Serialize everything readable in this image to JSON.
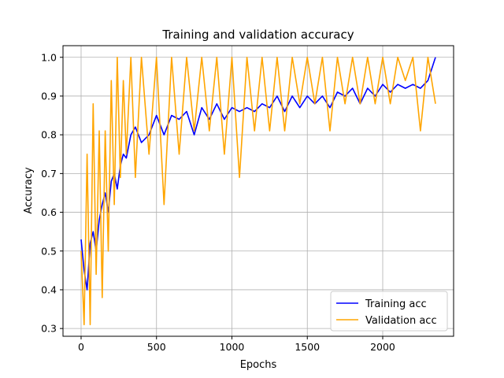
{
  "chart_data": {
    "type": "line",
    "title": "Training and validation accuracy",
    "xlabel": "Epochs",
    "ylabel": "Accuracy",
    "xlim": [
      -120,
      2470
    ],
    "ylim": [
      0.28,
      1.03
    ],
    "xticks": [
      0,
      500,
      1000,
      1500,
      2000
    ],
    "yticks": [
      0.3,
      0.4,
      0.5,
      0.6,
      0.7,
      0.8,
      0.9,
      1.0
    ],
    "grid": true,
    "legend_position": "lower-right",
    "series": [
      {
        "name": "Training acc",
        "color": "#0000ff",
        "x": [
          0,
          20,
          40,
          60,
          80,
          100,
          120,
          140,
          160,
          180,
          200,
          220,
          240,
          260,
          280,
          300,
          330,
          360,
          400,
          450,
          500,
          550,
          600,
          650,
          700,
          750,
          800,
          850,
          900,
          950,
          1000,
          1050,
          1100,
          1150,
          1200,
          1250,
          1300,
          1350,
          1400,
          1450,
          1500,
          1550,
          1600,
          1650,
          1700,
          1750,
          1800,
          1850,
          1900,
          1950,
          2000,
          2050,
          2100,
          2150,
          2200,
          2250,
          2300,
          2350
        ],
        "values": [
          0.53,
          0.45,
          0.4,
          0.52,
          0.55,
          0.5,
          0.58,
          0.62,
          0.65,
          0.6,
          0.68,
          0.7,
          0.66,
          0.72,
          0.75,
          0.74,
          0.8,
          0.82,
          0.78,
          0.8,
          0.85,
          0.8,
          0.85,
          0.84,
          0.86,
          0.8,
          0.87,
          0.84,
          0.88,
          0.84,
          0.87,
          0.86,
          0.87,
          0.86,
          0.88,
          0.87,
          0.9,
          0.86,
          0.9,
          0.87,
          0.9,
          0.88,
          0.9,
          0.87,
          0.91,
          0.9,
          0.92,
          0.88,
          0.92,
          0.9,
          0.93,
          0.91,
          0.93,
          0.92,
          0.93,
          0.92,
          0.94,
          1.0
        ]
      },
      {
        "name": "Validation acc",
        "color": "#ffa500",
        "x": [
          0,
          20,
          40,
          60,
          80,
          100,
          120,
          140,
          160,
          180,
          200,
          220,
          240,
          260,
          280,
          300,
          330,
          360,
          400,
          450,
          500,
          550,
          600,
          650,
          700,
          750,
          800,
          850,
          900,
          950,
          1000,
          1050,
          1100,
          1150,
          1200,
          1250,
          1300,
          1350,
          1400,
          1450,
          1500,
          1550,
          1600,
          1650,
          1700,
          1750,
          1800,
          1850,
          1900,
          1950,
          2000,
          2050,
          2100,
          2150,
          2200,
          2250,
          2300,
          2350
        ],
        "values": [
          0.5,
          0.31,
          0.75,
          0.31,
          0.88,
          0.44,
          0.81,
          0.38,
          0.81,
          0.5,
          0.94,
          0.62,
          1.0,
          0.69,
          0.94,
          0.75,
          1.0,
          0.69,
          1.0,
          0.75,
          1.0,
          0.62,
          1.0,
          0.75,
          1.0,
          0.81,
          1.0,
          0.81,
          1.0,
          0.75,
          1.0,
          0.69,
          1.0,
          0.81,
          1.0,
          0.81,
          1.0,
          0.81,
          1.0,
          0.88,
          1.0,
          0.88,
          1.0,
          0.81,
          1.0,
          0.88,
          1.0,
          0.88,
          1.0,
          0.88,
          1.0,
          0.88,
          1.0,
          0.94,
          1.0,
          0.81,
          1.0,
          0.88
        ]
      }
    ]
  }
}
